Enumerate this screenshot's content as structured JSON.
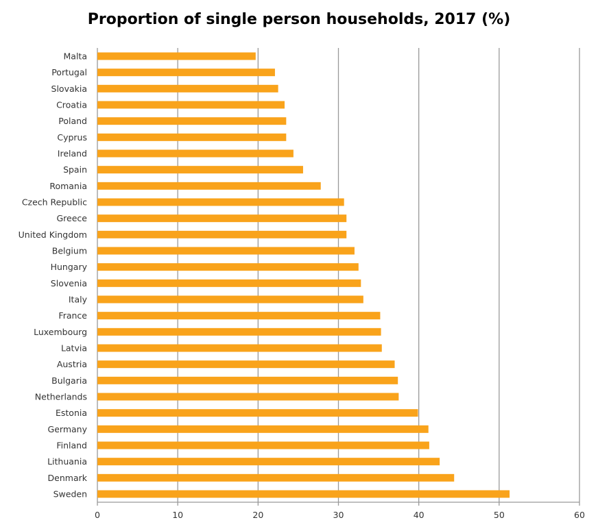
{
  "chart_data": {
    "type": "bar",
    "orientation": "horizontal",
    "title": "Proportion of single person households, 2017 (%)",
    "xlabel": "",
    "ylabel": "",
    "xlim": [
      0,
      60
    ],
    "xticks": [
      0,
      10,
      20,
      30,
      40,
      50,
      60
    ],
    "grid": true,
    "bar_color": "#F9A31B",
    "categories": [
      "Malta",
      "Portugal",
      "Slovakia",
      "Croatia",
      "Poland",
      "Cyprus",
      "Ireland",
      "Spain",
      "Romania",
      "Czech Republic",
      "Greece",
      "United Kingdom",
      "Belgium",
      "Hungary",
      "Slovenia",
      "Italy",
      "France",
      "Luxembourg",
      "Latvia",
      "Austria",
      "Bulgaria",
      "Netherlands",
      "Estonia",
      "Germany",
      "Finland",
      "Lithuania",
      "Denmark",
      "Sweden"
    ],
    "values": [
      19.7,
      22.1,
      22.5,
      23.3,
      23.5,
      23.5,
      24.4,
      25.6,
      27.8,
      30.7,
      31.0,
      31.0,
      32.0,
      32.5,
      32.8,
      33.1,
      35.2,
      35.3,
      35.4,
      37.0,
      37.4,
      37.5,
      39.9,
      41.2,
      41.3,
      42.6,
      44.4,
      51.3
    ]
  }
}
